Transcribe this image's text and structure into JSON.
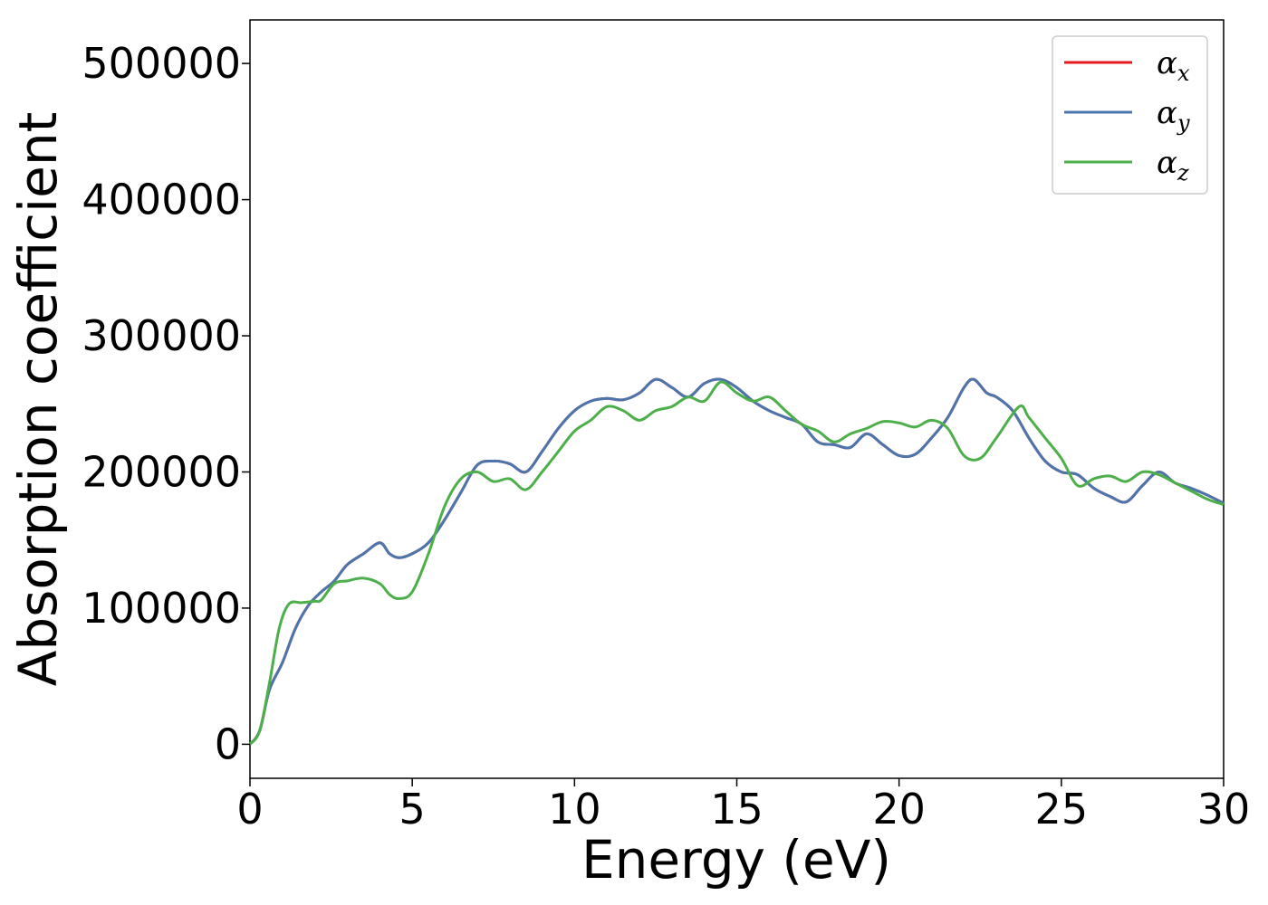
{
  "chart_data": {
    "type": "line",
    "title": "",
    "xlabel": "Energy (eV)",
    "ylabel": "Absorption coefficient",
    "xlim": [
      0,
      30
    ],
    "ylim": [
      -25000,
      532000
    ],
    "xticks": [
      0,
      5,
      10,
      15,
      20,
      25,
      30
    ],
    "yticks": [
      0,
      100000,
      200000,
      300000,
      400000,
      500000
    ],
    "xtick_labels": [
      "0",
      "5",
      "10",
      "15",
      "20",
      "25",
      "30"
    ],
    "ytick_labels": [
      "0",
      "100000",
      "200000",
      "300000",
      "400000",
      "500000"
    ],
    "grid": false,
    "legend_position": "top-right",
    "series": [
      {
        "name": "α_x",
        "legend_main": "α",
        "legend_sub": "x",
        "color": "#e41a1c",
        "x": [
          0,
          0.3,
          0.6,
          1.0,
          1.4,
          1.8,
          2.2,
          2.6,
          3.0,
          3.5,
          4.0,
          4.3,
          4.6,
          5.0,
          5.5,
          6.0,
          6.5,
          7.0,
          7.5,
          8.0,
          8.5,
          9.0,
          9.5,
          10.0,
          10.5,
          11.0,
          11.5,
          12.0,
          12.5,
          13.0,
          13.5,
          14.0,
          14.5,
          15.0,
          15.5,
          16.0,
          16.5,
          17.0,
          17.5,
          18.0,
          18.5,
          19.0,
          19.5,
          20.0,
          20.5,
          21.0,
          21.5,
          22.0,
          22.3,
          22.7,
          23.0,
          23.5,
          24.0,
          24.5,
          25.0,
          25.5,
          26.0,
          26.5,
          27.0,
          27.5,
          28.0,
          28.5,
          29.0,
          29.5,
          30.0
        ],
        "values": [
          0,
          10000,
          40000,
          60000,
          85000,
          102000,
          112000,
          120000,
          132000,
          140000,
          148000,
          140000,
          137000,
          140000,
          148000,
          165000,
          185000,
          205000,
          208000,
          206000,
          200000,
          215000,
          232000,
          245000,
          252000,
          254000,
          253000,
          258000,
          268000,
          262000,
          255000,
          265000,
          268000,
          262000,
          252000,
          245000,
          240000,
          235000,
          222000,
          220000,
          218000,
          228000,
          220000,
          212000,
          213000,
          225000,
          240000,
          262000,
          268000,
          258000,
          255000,
          245000,
          225000,
          208000,
          200000,
          198000,
          188000,
          182000,
          178000,
          190000,
          200000,
          192000,
          188000,
          183000,
          177000
        ]
      },
      {
        "name": "α_y",
        "legend_main": "α",
        "legend_sub": "y",
        "color": "#4a76ad",
        "x": [
          0,
          0.3,
          0.6,
          1.0,
          1.4,
          1.8,
          2.2,
          2.6,
          3.0,
          3.5,
          4.0,
          4.3,
          4.6,
          5.0,
          5.5,
          6.0,
          6.5,
          7.0,
          7.5,
          8.0,
          8.5,
          9.0,
          9.5,
          10.0,
          10.5,
          11.0,
          11.5,
          12.0,
          12.5,
          13.0,
          13.5,
          14.0,
          14.5,
          15.0,
          15.5,
          16.0,
          16.5,
          17.0,
          17.5,
          18.0,
          18.5,
          19.0,
          19.5,
          20.0,
          20.5,
          21.0,
          21.5,
          22.0,
          22.3,
          22.7,
          23.0,
          23.5,
          24.0,
          24.5,
          25.0,
          25.5,
          26.0,
          26.5,
          27.0,
          27.5,
          28.0,
          28.5,
          29.0,
          29.5,
          30.0
        ],
        "values": [
          0,
          10000,
          40000,
          60000,
          85000,
          102000,
          112000,
          120000,
          132000,
          140000,
          148000,
          140000,
          137000,
          140000,
          148000,
          165000,
          185000,
          205000,
          208000,
          206000,
          200000,
          215000,
          232000,
          245000,
          252000,
          254000,
          253000,
          258000,
          268000,
          262000,
          255000,
          265000,
          268000,
          262000,
          252000,
          245000,
          240000,
          235000,
          222000,
          220000,
          218000,
          228000,
          220000,
          212000,
          213000,
          225000,
          240000,
          262000,
          268000,
          258000,
          255000,
          245000,
          225000,
          208000,
          200000,
          198000,
          188000,
          182000,
          178000,
          190000,
          200000,
          192000,
          188000,
          183000,
          177000
        ]
      },
      {
        "name": "α_z",
        "legend_main": "α",
        "legend_sub": "z",
        "color": "#4daf4a",
        "x": [
          0,
          0.3,
          0.6,
          0.9,
          1.2,
          1.6,
          2.0,
          2.2,
          2.6,
          3.0,
          3.5,
          4.0,
          4.3,
          4.6,
          5.0,
          5.5,
          6.0,
          6.5,
          7.0,
          7.5,
          8.0,
          8.5,
          9.0,
          9.5,
          10.0,
          10.5,
          11.0,
          11.5,
          12.0,
          12.5,
          13.0,
          13.5,
          14.0,
          14.5,
          15.0,
          15.5,
          16.0,
          16.5,
          17.0,
          17.5,
          18.0,
          18.5,
          19.0,
          19.5,
          20.0,
          20.5,
          21.0,
          21.5,
          22.0,
          22.5,
          23.0,
          23.7,
          24.0,
          24.5,
          25.0,
          25.5,
          26.0,
          26.5,
          27.0,
          27.5,
          28.0,
          28.5,
          29.0,
          29.5,
          30.0
        ],
        "values": [
          0,
          10000,
          45000,
          85000,
          103000,
          104000,
          105000,
          106000,
          118000,
          120000,
          122000,
          118000,
          110000,
          107000,
          112000,
          140000,
          175000,
          195000,
          200000,
          193000,
          195000,
          187000,
          200000,
          215000,
          230000,
          238000,
          248000,
          245000,
          238000,
          245000,
          248000,
          255000,
          252000,
          266000,
          258000,
          252000,
          255000,
          245000,
          235000,
          230000,
          222000,
          228000,
          232000,
          237000,
          236000,
          233000,
          238000,
          232000,
          212000,
          210000,
          225000,
          248000,
          240000,
          225000,
          210000,
          190000,
          195000,
          197000,
          193000,
          200000,
          198000,
          192000,
          186000,
          180000,
          176000
        ]
      }
    ]
  }
}
